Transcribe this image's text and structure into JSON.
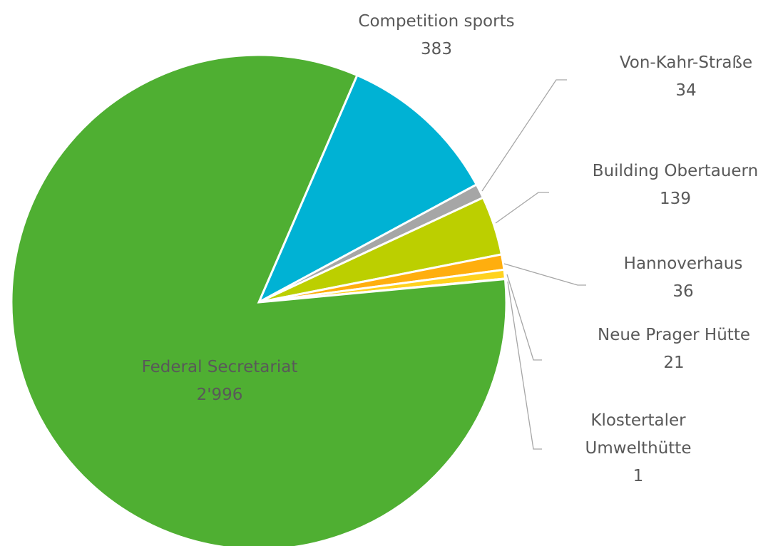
{
  "chart_data": {
    "type": "pie",
    "categories": [
      "Competition sports",
      "Von-Kahr-Straße",
      "Building Obertauern",
      "Hannoverhaus",
      "Neue Prager Hütte",
      "Klostertaler Umwelthütte",
      "Federal Secretariat"
    ],
    "values": [
      383,
      34,
      139,
      36,
      21,
      1,
      2996
    ],
    "value_labels": [
      "383",
      "34",
      "139",
      "36",
      "21",
      "1",
      "2'996"
    ],
    "colors": [
      "#00b2d4",
      "#a6a6a6",
      "#bccf00",
      "#ffae0e",
      "#ffd21f",
      "#f4e04d",
      "#4faf32"
    ]
  }
}
